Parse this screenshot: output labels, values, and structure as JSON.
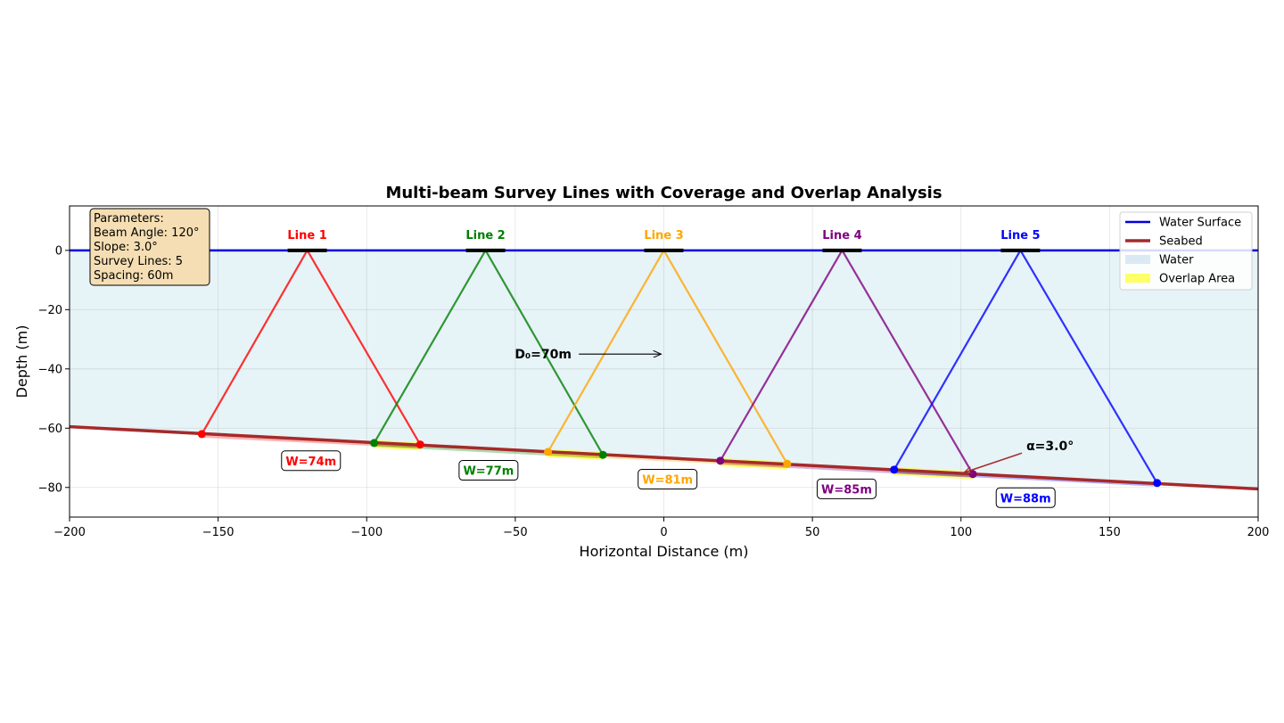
{
  "chart_data": {
    "type": "line",
    "title": "Multi-beam Survey Lines with Coverage and Overlap Analysis",
    "xlabel": "Horizontal Distance (m)",
    "ylabel": "Depth (m)",
    "xlim": [
      -200,
      200
    ],
    "ylim": [
      -90,
      15
    ],
    "xticks": [
      -200,
      -150,
      -100,
      -50,
      0,
      50,
      100,
      150,
      200
    ],
    "yticks": [
      0,
      -20,
      -40,
      -60,
      -80
    ],
    "grid": true,
    "legend_placement": "top-right",
    "legend": [
      {
        "label": "Water Surface",
        "kind": "line",
        "color": "#0000dd"
      },
      {
        "label": "Seabed",
        "kind": "thick-line",
        "color": "#a52a2a"
      },
      {
        "label": "Water",
        "kind": "patch",
        "color": "#dbe9f5"
      },
      {
        "label": "Overlap Area",
        "kind": "patch",
        "color": "#ffff66"
      }
    ],
    "parameters_box": {
      "lines": [
        "Parameters:",
        "Beam Angle: 120°",
        "Slope: 3.0°",
        "Survey Lines: 5",
        "Spacing: 60m"
      ]
    },
    "water_surface": {
      "x": [
        -200,
        200
      ],
      "y": [
        0,
        0
      ]
    },
    "seabed": {
      "x": [
        -200,
        200
      ],
      "y": [
        -59.5,
        -80.5
      ]
    },
    "survey_lines": [
      {
        "name": "Line 1",
        "x0": -120,
        "color": "#ff0000",
        "left": [
          -155.5,
          -62.0
        ],
        "right": [
          -82.0,
          -65.5
        ],
        "width_label": "W=74m"
      },
      {
        "name": "Line 2",
        "x0": -60,
        "color": "#008000",
        "left": [
          -97.5,
          -65.0
        ],
        "right": [
          -20.5,
          -69.0
        ],
        "width_label": "W=77m"
      },
      {
        "name": "Line 3",
        "x0": 0,
        "color": "#ffa500",
        "left": [
          -39.0,
          -68.0
        ],
        "right": [
          41.5,
          -72.0
        ],
        "width_label": "W=81m"
      },
      {
        "name": "Line 4",
        "x0": 60,
        "color": "#800080",
        "left": [
          19.0,
          -71.0
        ],
        "right": [
          104.0,
          -75.5
        ],
        "width_label": "W=85m"
      },
      {
        "name": "Line 5",
        "x0": 120,
        "color": "#0000ff",
        "left": [
          77.5,
          -74.0
        ],
        "right": [
          166.0,
          -78.5
        ],
        "width_label": "W=88m"
      }
    ],
    "overlaps": [
      {
        "x": [
          -97.5,
          -82.0
        ]
      },
      {
        "x": [
          -39.0,
          -20.5
        ]
      },
      {
        "x": [
          19.0,
          41.5
        ]
      },
      {
        "x": [
          77.5,
          104.0
        ]
      }
    ],
    "annotations": {
      "depth": {
        "text": "D₀=70m",
        "text_at": [
          -40,
          -35
        ],
        "arrow_to": [
          0,
          -35
        ]
      },
      "slope": {
        "text": "α=3.0°",
        "text_at": [
          122,
          -67.5
        ],
        "arrow_to": [
          101,
          -75
        ]
      }
    }
  }
}
